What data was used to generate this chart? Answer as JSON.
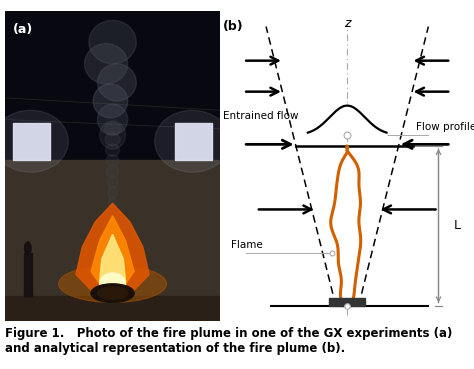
{
  "fig_width": 4.74,
  "fig_height": 3.69,
  "dpi": 100,
  "bg_color": "#ffffff",
  "caption_line1": "Figure 1.   Photo of the fire plume in one of the GX experiments (a)",
  "caption_line2": "and analytical representation of the fire plume (b).",
  "caption_fontsize": 8.5,
  "label_a": "(a)",
  "label_b": "(b)",
  "z_label": "z",
  "entrained_flow_label": "Entrained flow",
  "flow_profile_label": "Flow profile",
  "flame_label": "Flame",
  "L_label": "L",
  "photo_bg": "#0a0a12",
  "photo_wall_color": "#4a3a2a",
  "photo_win_color": "#e8e8f0",
  "smoke_color": "#505060",
  "fire_orange": "#e06000",
  "fire_yellow": "#ffcc00",
  "fire_white": "#fff8e0",
  "diag_flame_color": "#d06000",
  "arrow_color": "#000000",
  "dashed_color": "#000000",
  "center_dash_color": "#aaaaaa",
  "gauss_color": "#000000",
  "annot_line_color": "#aaaaaa",
  "L_arrow_color": "#888888"
}
